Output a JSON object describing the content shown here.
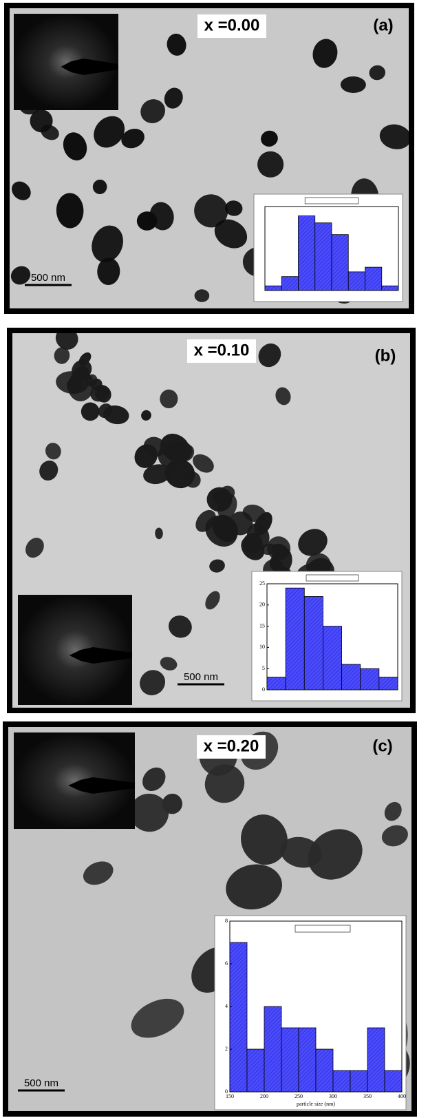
{
  "panels": [
    {
      "composition": "x =0.00",
      "label": "(a)",
      "scale_bar": "500 nm",
      "histogram": {
        "counts": [
          1,
          3,
          16,
          14.5,
          12,
          4,
          5,
          1
        ],
        "ylim": [
          0,
          18
        ]
      }
    },
    {
      "composition": "x =0.10",
      "label": "(b)",
      "scale_bar": "500 nm",
      "histogram": {
        "counts": [
          3,
          24,
          22,
          15,
          6,
          5,
          3
        ],
        "ylim": [
          0,
          25
        ],
        "yticks": [
          0,
          5,
          10,
          15,
          20,
          25
        ]
      }
    },
    {
      "composition": "x =0.20",
      "label": "(c)",
      "scale_bar": "500 nm",
      "histogram": {
        "counts": [
          7,
          2,
          4,
          3,
          3,
          2,
          1,
          1,
          3,
          1
        ],
        "ylim": [
          0,
          8
        ],
        "yticks": [
          0,
          2,
          4,
          6,
          8
        ],
        "xlim": [
          150,
          400
        ],
        "xticks": [
          150,
          200,
          250,
          300,
          350,
          400
        ],
        "xlabel": "particle size (nm)"
      }
    }
  ]
}
